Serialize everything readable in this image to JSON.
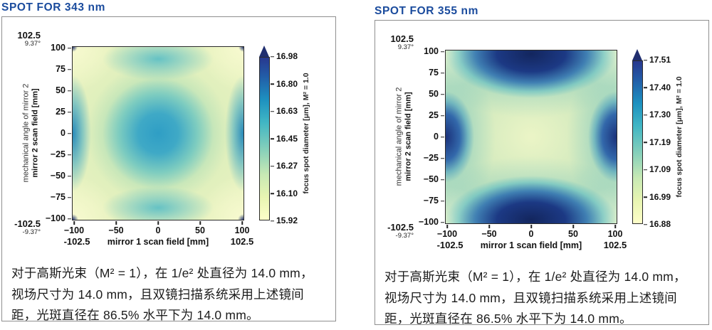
{
  "accent_color": "#1a4b9d",
  "chart_data": [
    {
      "type": "heatmap",
      "title": "SPOT FOR 343 nm",
      "xlabel": "mirror 1 scan field [mm]",
      "ylabel_line1": "mechanical angle of mirror 2",
      "ylabel_line2": "mirror 2 scan field [mm]",
      "xticks": [
        "−100",
        "−50",
        "0",
        "50",
        "100"
      ],
      "yticks": [
        "100",
        "75",
        "50",
        "25",
        "0",
        "−25",
        "−50",
        "−75",
        "−100"
      ],
      "xlim": [
        -102.5,
        102.5
      ],
      "ylim": [
        -102.5,
        102.5
      ],
      "annotations": {
        "top_left_mm": "102.5",
        "top_left_deg": "9.37°",
        "bottom_left_mm": "-102.5",
        "bottom_left_deg": "-9.37°",
        "x_min_mm": "-102.5",
        "x_max_mm": "102.5"
      },
      "colorbar": {
        "label": "focus spot diameter [μm], M² = 1.0",
        "ticks": [
          "16.98",
          "16.80",
          "16.63",
          "16.45",
          "16.27",
          "16.10",
          "15.92"
        ],
        "min": 15.92,
        "max": 16.98,
        "colormap": "YlGnBu",
        "extend": "max"
      },
      "pattern": "teal local maximum (~16.6 µm) at the field centre, darker blue bands at mid left/right edges, tiny dark-navy spots in the four corners, pale yellow minima (~15.9 µm) towards the corners",
      "caption_lines": [
        "对于高斯光束（M² = 1），在 1/e² 处直径为 14.0 mm，",
        "视场尺寸为 14.0 mm，且双镜扫描系统采用上述镜间",
        "距，光斑直径在 86.5% 水平下为 14.0 mm。"
      ]
    },
    {
      "type": "heatmap",
      "title": "SPOT FOR 355 nm",
      "xlabel": "mirror 1 scan field [mm]",
      "ylabel_line1": "mechanical angle of mirror 2",
      "ylabel_line2": "mirror 2 scan field [mm]",
      "xticks": [
        "−100",
        "−50",
        "0",
        "50",
        "100"
      ],
      "yticks": [
        "100",
        "75",
        "50",
        "25",
        "0",
        "−25",
        "−50",
        "−75",
        "−100"
      ],
      "xlim": [
        -102.5,
        102.5
      ],
      "ylim": [
        -102.5,
        102.5
      ],
      "annotations": {
        "top_left_mm": "102.5",
        "top_left_deg": "9.37°",
        "bottom_left_mm": "-102.5",
        "bottom_left_deg": "-9.37°",
        "x_min_mm": "-102.5",
        "x_max_mm": "102.5"
      },
      "colorbar": {
        "label": "focus spot diameter [μm], M² = 1.0",
        "ticks": [
          "17.51",
          "17.40",
          "17.30",
          "17.19",
          "17.09",
          "16.99",
          "16.88"
        ],
        "min": 16.88,
        "max": 17.51,
        "colormap": "YlGnBu",
        "extend": "max"
      },
      "pattern": "dark navy maxima (~17.5 µm) at top-centre and bottom-centre edges and at mid left/right edges, pale yellow-green minimum (~16.9 µm) in the centre and at the corners",
      "caption_lines": [
        "对于高斯光束（M² = 1），在 1/e² 处直径为 14.0 mm，",
        "视场尺寸为 14.0 mm，且双镜扫描系统采用上述镜间",
        "距，光斑直径在 86.5% 水平下为 14.0 mm。"
      ]
    }
  ]
}
